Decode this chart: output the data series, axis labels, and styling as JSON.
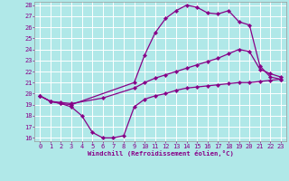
{
  "xlabel": "Windchill (Refroidissement éolien,°C)",
  "xlim": [
    -0.5,
    23.5
  ],
  "ylim": [
    15.7,
    28.3
  ],
  "xticks": [
    0,
    1,
    2,
    3,
    4,
    5,
    6,
    7,
    8,
    9,
    10,
    11,
    12,
    13,
    14,
    15,
    16,
    17,
    18,
    19,
    20,
    21,
    22,
    23
  ],
  "yticks": [
    16,
    17,
    18,
    19,
    20,
    21,
    22,
    23,
    24,
    25,
    26,
    27,
    28
  ],
  "bg_color": "#b0e8e8",
  "grid_color": "#ffffff",
  "line_color": "#880088",
  "line_width": 0.9,
  "marker": "D",
  "marker_size": 2.2,
  "curves": [
    {
      "x": [
        0,
        1,
        2,
        3,
        4,
        5,
        6,
        7,
        8,
        9,
        10,
        11,
        12,
        13,
        14,
        15,
        16,
        17,
        18,
        19,
        20,
        21,
        22,
        23
      ],
      "y": [
        19.8,
        19.3,
        19.1,
        18.8,
        18.0,
        16.5,
        16.0,
        16.0,
        16.2,
        18.8,
        19.5,
        19.8,
        20.0,
        20.3,
        20.5,
        20.6,
        20.7,
        20.8,
        20.9,
        21.0,
        21.0,
        21.1,
        21.2,
        21.3
      ]
    },
    {
      "x": [
        0,
        1,
        2,
        3,
        6,
        9,
        10,
        11,
        12,
        13,
        14,
        15,
        16,
        17,
        18,
        19,
        20,
        21,
        22,
        23
      ],
      "y": [
        19.8,
        19.3,
        19.2,
        19.1,
        19.6,
        20.5,
        21.0,
        21.4,
        21.7,
        22.0,
        22.3,
        22.6,
        22.9,
        23.2,
        23.6,
        24.0,
        23.8,
        22.2,
        21.8,
        21.5
      ]
    },
    {
      "x": [
        0,
        1,
        2,
        3,
        9,
        10,
        11,
        12,
        13,
        14,
        15,
        16,
        17,
        18,
        19,
        20,
        21,
        22,
        23
      ],
      "y": [
        19.8,
        19.3,
        19.1,
        19.0,
        21.0,
        23.5,
        25.5,
        26.8,
        27.5,
        28.0,
        27.8,
        27.3,
        27.2,
        27.5,
        26.5,
        26.2,
        22.5,
        21.5,
        21.3
      ]
    }
  ]
}
